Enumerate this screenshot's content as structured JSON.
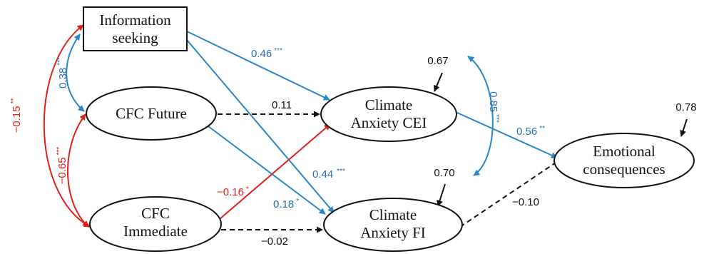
{
  "colors": {
    "negative": "#e0201a",
    "positive": "#2b86c5",
    "neutral": "#111111",
    "positive_text": "#2a6fb4"
  },
  "nodes": {
    "information_seeking": {
      "line1": "Information",
      "line2": "seeking",
      "shape": "rectangle"
    },
    "cfc_future": {
      "line1": "CFC Future",
      "shape": "ellipse"
    },
    "cfc_immediate": {
      "line1": "CFC",
      "line2": "Immediate",
      "shape": "ellipse"
    },
    "climate_anxiety_cei": {
      "line1": "Climate",
      "line2": "Anxiety CEI",
      "shape": "ellipse"
    },
    "climate_anxiety_fi": {
      "line1": "Climate",
      "line2": "Anxiety FI",
      "shape": "ellipse"
    },
    "emotional_consequences": {
      "line1": "Emotional",
      "line2": "consequences",
      "shape": "ellipse"
    }
  },
  "paths": {
    "info_to_cei": {
      "value": "0.46",
      "sig": "***",
      "color": "positive"
    },
    "info_to_fi": {
      "value": "0.44",
      "sig": "***",
      "color": "positive"
    },
    "future_to_cei": {
      "value": "0.11",
      "sig": "",
      "color": "neutral",
      "dashed": true
    },
    "future_to_fi": {
      "value": "0.18",
      "sig": "*",
      "color": "positive"
    },
    "immediate_to_cei": {
      "value": "−0.16",
      "sig": "*",
      "color": "negative"
    },
    "immediate_to_fi": {
      "value": "−0.02",
      "sig": "",
      "color": "neutral",
      "dashed": true
    },
    "cei_to_emotional": {
      "value": "0.56",
      "sig": "**",
      "color": "positive"
    },
    "fi_to_emotional": {
      "value": "−0.10",
      "sig": "",
      "color": "neutral",
      "dashed": true
    }
  },
  "covariances": {
    "info_future": {
      "value": "0.38",
      "sig": "***",
      "color": "positive"
    },
    "info_immediate": {
      "value": "−0.15",
      "sig": "**",
      "color": "negative"
    },
    "future_immediate": {
      "value": "−0.65",
      "sig": "***",
      "color": "negative"
    },
    "cei_fi_residual": {
      "value": "0.85",
      "sig": "***",
      "color": "positive"
    }
  },
  "residuals": {
    "cei": "0.67",
    "fi": "0.70",
    "emotional": "0.78"
  }
}
